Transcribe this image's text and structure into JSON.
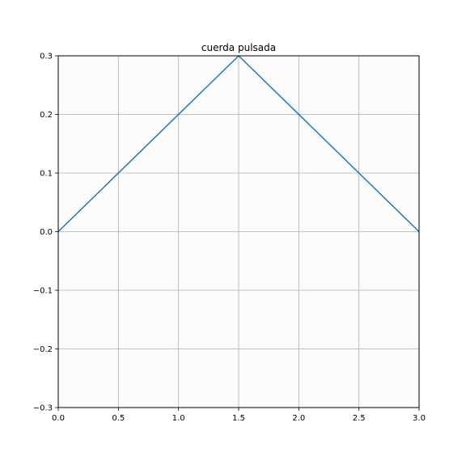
{
  "chart_data": {
    "type": "line",
    "title": "cuerda pulsada",
    "xlabel": "",
    "ylabel": "",
    "xlim": [
      0.0,
      3.0
    ],
    "ylim": [
      -0.3,
      0.3
    ],
    "xticks": [
      0.0,
      0.5,
      1.0,
      1.5,
      2.0,
      2.5,
      3.0
    ],
    "xtick_labels": [
      "0.0",
      "0.5",
      "1.0",
      "1.5",
      "2.0",
      "2.5",
      "3.0"
    ],
    "yticks": [
      -0.3,
      -0.2,
      -0.1,
      0.0,
      0.1,
      0.2,
      0.3
    ],
    "ytick_labels": [
      "−0.3",
      "−0.2",
      "−0.1",
      "0.0",
      "0.1",
      "0.2",
      "0.3"
    ],
    "grid": true,
    "series": [
      {
        "x": [
          0.0,
          1.5,
          3.0
        ],
        "y": [
          0.0,
          0.3,
          0.0
        ],
        "color": "#1f77b4"
      }
    ],
    "colors": {
      "line": "#1f77b4",
      "grid": "#b0b0b0",
      "axes_bg": "#fcfcfc",
      "spine": "#000000"
    }
  }
}
